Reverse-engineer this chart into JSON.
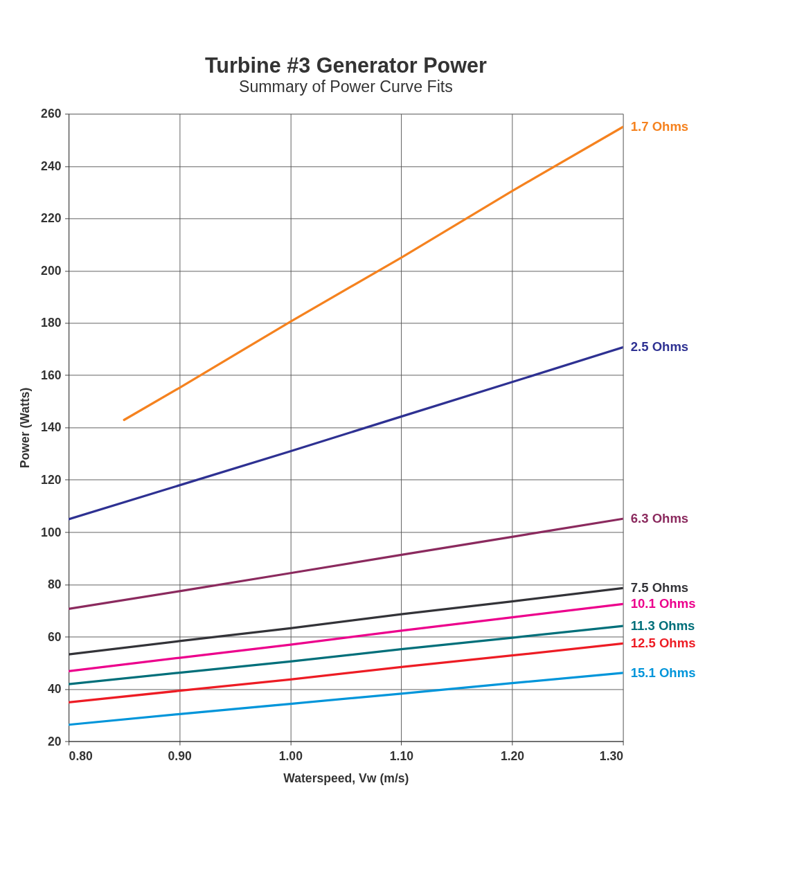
{
  "chart_data": {
    "type": "line",
    "title": "Turbine #3 Generator Power",
    "subtitle": "Summary of Power Curve Fits",
    "xlabel": "Waterspeed, Vw (m/s)",
    "ylabel": "Power (Watts)",
    "x": [
      0.8,
      0.9,
      1.0,
      1.1,
      1.2,
      1.3
    ],
    "series": [
      {
        "name": "1.7 Ohms",
        "color": "#f5821f",
        "x": [
          0.85,
          0.9,
          1.0,
          1.1,
          1.2,
          1.3
        ],
        "values": [
          142.9,
          155.2,
          180.5,
          205,
          230.5,
          255
        ]
      },
      {
        "name": "2.5 Ohms",
        "color": "#2e3192",
        "values": [
          104.9,
          117.9,
          130.9,
          144.2,
          157.4,
          170.7
        ]
      },
      {
        "name": "6.3 Ohms",
        "color": "#8b2a5e",
        "values": [
          70.6,
          77.4,
          84.3,
          91.3,
          98.2,
          105.1
        ]
      },
      {
        "name": "7.5 Ohms",
        "color": "#333338",
        "values": [
          53.2,
          58.3,
          63.2,
          68.6,
          73.5,
          78.6
        ]
      },
      {
        "name": "10.1 Ohms",
        "color": "#ec008c",
        "values": [
          46.8,
          51.9,
          56.9,
          62.3,
          67.4,
          72.5
        ]
      },
      {
        "name": "11.3 Ohms",
        "color": "#006f7a",
        "values": [
          41.8,
          46.2,
          50.5,
          55.2,
          59.6,
          64.1
        ]
      },
      {
        "name": "12.5 Ohms",
        "color": "#ed1c24",
        "values": [
          34.9,
          39.3,
          43.6,
          48.4,
          52.8,
          57.4
        ]
      },
      {
        "name": "15.1 Ohms",
        "color": "#0095da",
        "values": [
          26.3,
          30.4,
          34.3,
          38.2,
          42.2,
          46.1
        ]
      }
    ],
    "xlim": [
      0.8,
      1.3
    ],
    "xticks": [
      {
        "value": 0.8,
        "label": "0.80"
      },
      {
        "value": 0.9,
        "label": "0.90"
      },
      {
        "value": 1.0,
        "label": "1.00"
      },
      {
        "value": 1.1,
        "label": "1.10"
      },
      {
        "value": 1.2,
        "label": "1.20"
      },
      {
        "value": 1.3,
        "label": "1.30"
      }
    ],
    "ylim": [
      20,
      260
    ],
    "yticks": [
      20,
      40,
      60,
      80,
      100,
      120,
      140,
      160,
      180,
      200,
      220,
      240,
      260
    ],
    "grid": true,
    "legend": false,
    "marker": "none",
    "line_style": "solid"
  }
}
